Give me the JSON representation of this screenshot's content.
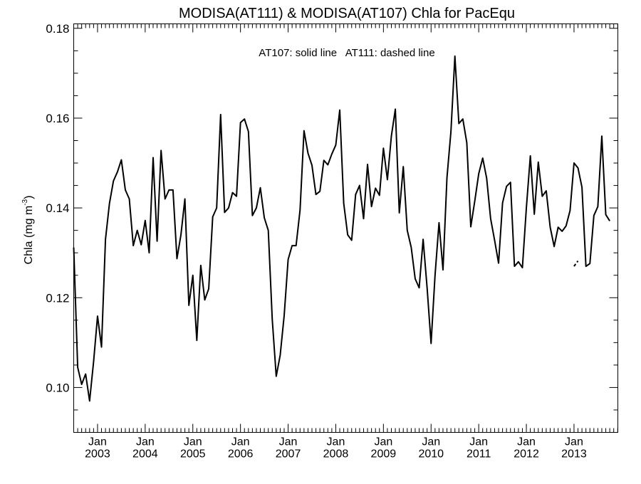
{
  "chart_data": {
    "type": "line",
    "title": "MODISA(AT111) & MODISA(AT107)  Chla for PacEqu",
    "annotation": "AT107: solid line   AT111: dashed line",
    "ylabel_main": "Chla (mg m",
    "ylabel_sup": "-3",
    "ylabel_close": ")",
    "xlim": [
      2002.5,
      2013.92
    ],
    "ylim": [
      0.09,
      0.181
    ],
    "y_ticks": [
      0.1,
      0.12,
      0.14,
      0.16,
      0.18
    ],
    "y_tick_labels": [
      "0.10",
      "0.12",
      "0.14",
      "0.16",
      "0.18"
    ],
    "x_ticks": [
      {
        "pos": 2003.0,
        "month": "Jan",
        "year": "2003"
      },
      {
        "pos": 2004.0,
        "month": "Jan",
        "year": "2004"
      },
      {
        "pos": 2005.0,
        "month": "Jan",
        "year": "2005"
      },
      {
        "pos": 2006.0,
        "month": "Jan",
        "year": "2006"
      },
      {
        "pos": 2007.0,
        "month": "Jan",
        "year": "2007"
      },
      {
        "pos": 2008.0,
        "month": "Jan",
        "year": "2008"
      },
      {
        "pos": 2009.0,
        "month": "Jan",
        "year": "2009"
      },
      {
        "pos": 2010.0,
        "month": "Jan",
        "year": "2010"
      },
      {
        "pos": 2011.0,
        "month": "Jan",
        "year": "2011"
      },
      {
        "pos": 2012.0,
        "month": "Jan",
        "year": "2012"
      },
      {
        "pos": 2013.0,
        "month": "Jan",
        "year": "2013"
      }
    ],
    "series": [
      {
        "style": "solid",
        "start": 2002.5,
        "step": 0.0833333,
        "values": [
          0.1312,
          0.1045,
          0.1007,
          0.103,
          0.097,
          0.1057,
          0.1159,
          0.109,
          0.133,
          0.141,
          0.146,
          0.148,
          0.1507,
          0.144,
          0.142,
          0.1316,
          0.135,
          0.1318,
          0.1372,
          0.13,
          0.1512,
          0.1326,
          0.1528,
          0.142,
          0.144,
          0.144,
          0.1287,
          0.134,
          0.142,
          0.1183,
          0.125,
          0.1105,
          0.1272,
          0.1195,
          0.122,
          0.138,
          0.14,
          0.1608,
          0.139,
          0.14,
          0.1434,
          0.1426,
          0.159,
          0.1598,
          0.157,
          0.1383,
          0.14,
          0.1445,
          0.1378,
          0.135,
          0.1152,
          0.1025,
          0.1072,
          0.116,
          0.1285,
          0.1316,
          0.1316,
          0.1395,
          0.1572,
          0.1522,
          0.1495,
          0.143,
          0.1437,
          0.1506,
          0.1496,
          0.152,
          0.154,
          0.1618,
          0.141,
          0.134,
          0.1328,
          0.143,
          0.145,
          0.1376,
          0.1497,
          0.1403,
          0.1444,
          0.1428,
          0.1533,
          0.1463,
          0.156,
          0.162,
          0.1389,
          0.1492,
          0.135,
          0.1312,
          0.1242,
          0.1222,
          0.133,
          0.1222,
          0.1098,
          0.125,
          0.1367,
          0.1262,
          0.1467,
          0.157,
          0.1738,
          0.1588,
          0.1598,
          0.1545,
          0.1358,
          0.1415,
          0.1476,
          0.1511,
          0.1466,
          0.1376,
          0.1328,
          0.1277,
          0.1411,
          0.1448,
          0.1457,
          0.127,
          0.128,
          0.1267,
          0.14,
          0.1516,
          0.1386,
          0.1502,
          0.1426,
          0.1438,
          0.1357,
          0.1314,
          0.1357,
          0.1348,
          0.136,
          0.1394,
          0.15,
          0.1489,
          0.1446,
          0.127,
          0.1276,
          0.1383,
          0.1403,
          0.156,
          0.1385,
          0.1371
        ]
      },
      {
        "style": "dashed",
        "start": 2013.0,
        "step": 0.0833333,
        "values": [
          0.127,
          0.1282
        ]
      }
    ]
  }
}
